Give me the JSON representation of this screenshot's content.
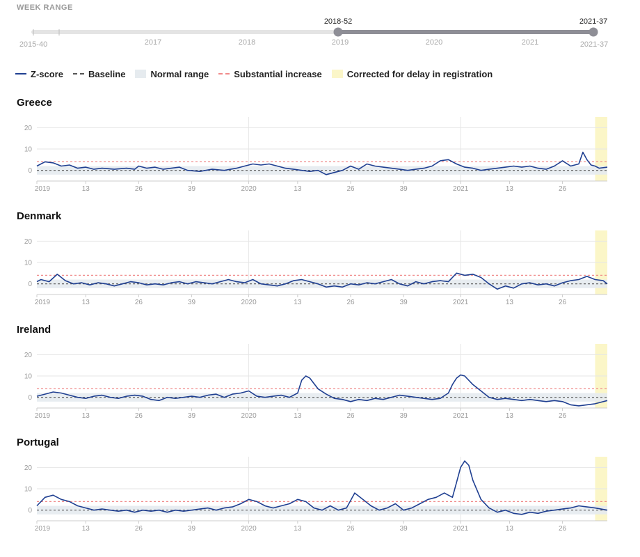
{
  "week_range": {
    "label": "WEEK RANGE",
    "min_label": "2015-40",
    "max_label": "2021-37",
    "year_ticks": [
      "2017",
      "2018",
      "2019",
      "2020",
      "2021"
    ],
    "selected_start": "2018-52",
    "selected_end": "2021-37",
    "colors": {
      "track": "#e4e4e4",
      "selected": "#8e8e96",
      "handle": "#8e8e96"
    }
  },
  "legend": [
    {
      "key": "z",
      "label": "Z-score"
    },
    {
      "key": "base",
      "label": "Baseline"
    },
    {
      "key": "normal",
      "label": "Normal range"
    },
    {
      "key": "sub",
      "label": "Substantial increase"
    },
    {
      "key": "corr",
      "label": "Corrected for delay in registration"
    }
  ],
  "colors": {
    "z_score": "#1f3f91",
    "baseline": "#555555",
    "normal_range": "#e6ebef",
    "substantial_increase": "#f08a8a",
    "corrected": "#fbf6c8",
    "grid": "#e6e6e6"
  },
  "chart_data": {
    "type": "line",
    "x_axis": {
      "tick_labels": [
        "2019",
        "13",
        "26",
        "39",
        "2020",
        "13",
        "26",
        "39",
        "2021",
        "13",
        "26"
      ],
      "tick_weeks": [
        1,
        13,
        26,
        39,
        53,
        65,
        78,
        91,
        105,
        117,
        130
      ],
      "range_weeks": [
        1,
        141
      ]
    },
    "y_axis": {
      "ticks": [
        0,
        10,
        20
      ]
    },
    "normal_range": [
      -2,
      2
    ],
    "baseline": 0,
    "substantial_increase": 4,
    "corrected_weeks": [
      138,
      141
    ],
    "panels": [
      {
        "country": "Greece",
        "ylim": [
          -5,
          25
        ],
        "points": [
          [
            1,
            2
          ],
          [
            3,
            4
          ],
          [
            5,
            3.5
          ],
          [
            7,
            2
          ],
          [
            9,
            2.5
          ],
          [
            11,
            1
          ],
          [
            13,
            1.5
          ],
          [
            15,
            0.5
          ],
          [
            17,
            1
          ],
          [
            20,
            0.5
          ],
          [
            23,
            1
          ],
          [
            25,
            0.5
          ],
          [
            26,
            2
          ],
          [
            28,
            1
          ],
          [
            30,
            1.5
          ],
          [
            32,
            0.5
          ],
          [
            34,
            1
          ],
          [
            36,
            1.5
          ],
          [
            38,
            0
          ],
          [
            41,
            -0.5
          ],
          [
            44,
            0.5
          ],
          [
            47,
            0
          ],
          [
            50,
            1
          ],
          [
            52,
            2
          ],
          [
            54,
            3
          ],
          [
            56,
            2.5
          ],
          [
            58,
            3
          ],
          [
            60,
            2
          ],
          [
            62,
            1
          ],
          [
            64,
            0.5
          ],
          [
            66,
            0
          ],
          [
            68,
            -0.5
          ],
          [
            70,
            0
          ],
          [
            72,
            -2
          ],
          [
            74,
            -1
          ],
          [
            76,
            0
          ],
          [
            78,
            2
          ],
          [
            80,
            0.5
          ],
          [
            82,
            3
          ],
          [
            84,
            2
          ],
          [
            86,
            1.5
          ],
          [
            88,
            1
          ],
          [
            90,
            0.5
          ],
          [
            92,
            0
          ],
          [
            94,
            0.5
          ],
          [
            96,
            1
          ],
          [
            98,
            2
          ],
          [
            100,
            4.5
          ],
          [
            102,
            5
          ],
          [
            104,
            3
          ],
          [
            106,
            1.5
          ],
          [
            108,
            1
          ],
          [
            110,
            0
          ],
          [
            112,
            0.5
          ],
          [
            114,
            1
          ],
          [
            116,
            1.5
          ],
          [
            118,
            2
          ],
          [
            120,
            1.5
          ],
          [
            122,
            2
          ],
          [
            124,
            1
          ],
          [
            126,
            0.5
          ],
          [
            128,
            2
          ],
          [
            130,
            4.5
          ],
          [
            132,
            2
          ],
          [
            134,
            3
          ],
          [
            135,
            8.5
          ],
          [
            136,
            5
          ],
          [
            137,
            2.5
          ],
          [
            138,
            2
          ],
          [
            139,
            1
          ],
          [
            141,
            1.5
          ]
        ]
      },
      {
        "country": "Denmark",
        "ylim": [
          -5,
          25
        ],
        "points": [
          [
            1,
            1
          ],
          [
            2,
            2
          ],
          [
            4,
            1
          ],
          [
            6,
            4.5
          ],
          [
            8,
            1.5
          ],
          [
            10,
            0
          ],
          [
            12,
            0.5
          ],
          [
            14,
            -0.5
          ],
          [
            16,
            0.5
          ],
          [
            18,
            0
          ],
          [
            20,
            -1
          ],
          [
            22,
            0
          ],
          [
            24,
            1
          ],
          [
            26,
            0.5
          ],
          [
            28,
            -0.5
          ],
          [
            30,
            0
          ],
          [
            32,
            -0.5
          ],
          [
            34,
            0.5
          ],
          [
            36,
            1
          ],
          [
            38,
            0
          ],
          [
            40,
            1
          ],
          [
            42,
            0.5
          ],
          [
            44,
            0
          ],
          [
            46,
            1
          ],
          [
            48,
            2
          ],
          [
            50,
            1
          ],
          [
            52,
            0.5
          ],
          [
            54,
            2
          ],
          [
            56,
            0
          ],
          [
            58,
            -0.5
          ],
          [
            60,
            -1
          ],
          [
            62,
            0
          ],
          [
            64,
            1.5
          ],
          [
            66,
            2
          ],
          [
            68,
            1
          ],
          [
            70,
            0
          ],
          [
            72,
            -1.5
          ],
          [
            74,
            -1
          ],
          [
            76,
            -1.5
          ],
          [
            78,
            0
          ],
          [
            80,
            -0.5
          ],
          [
            82,
            0.5
          ],
          [
            84,
            0
          ],
          [
            86,
            1
          ],
          [
            88,
            2
          ],
          [
            90,
            0
          ],
          [
            92,
            -1
          ],
          [
            94,
            1
          ],
          [
            96,
            0
          ],
          [
            98,
            1
          ],
          [
            100,
            1.5
          ],
          [
            102,
            1
          ],
          [
            104,
            5
          ],
          [
            106,
            4
          ],
          [
            108,
            4.5
          ],
          [
            110,
            3
          ],
          [
            112,
            0
          ],
          [
            114,
            -2.5
          ],
          [
            116,
            -1
          ],
          [
            118,
            -2
          ],
          [
            120,
            0
          ],
          [
            122,
            0.5
          ],
          [
            124,
            -0.5
          ],
          [
            126,
            0
          ],
          [
            128,
            -1
          ],
          [
            130,
            0.5
          ],
          [
            132,
            1.5
          ],
          [
            134,
            2
          ],
          [
            136,
            3.5
          ],
          [
            138,
            2
          ],
          [
            140,
            1.5
          ],
          [
            141,
            0
          ]
        ]
      },
      {
        "country": "Ireland",
        "ylim": [
          -5,
          25
        ],
        "points": [
          [
            1,
            0.5
          ],
          [
            3,
            1.5
          ],
          [
            5,
            2.5
          ],
          [
            7,
            2
          ],
          [
            9,
            1
          ],
          [
            11,
            0
          ],
          [
            13,
            -0.5
          ],
          [
            15,
            0.5
          ],
          [
            17,
            1
          ],
          [
            19,
            0
          ],
          [
            21,
            -0.5
          ],
          [
            23,
            0.5
          ],
          [
            25,
            1
          ],
          [
            27,
            0.5
          ],
          [
            29,
            -1
          ],
          [
            31,
            -1.5
          ],
          [
            33,
            0
          ],
          [
            35,
            -0.5
          ],
          [
            37,
            0
          ],
          [
            39,
            0.5
          ],
          [
            41,
            0
          ],
          [
            43,
            1
          ],
          [
            45,
            1.5
          ],
          [
            47,
            0
          ],
          [
            49,
            1.5
          ],
          [
            51,
            2
          ],
          [
            53,
            3
          ],
          [
            55,
            0.5
          ],
          [
            57,
            0
          ],
          [
            59,
            0.5
          ],
          [
            61,
            1
          ],
          [
            63,
            0
          ],
          [
            65,
            2
          ],
          [
            66,
            8
          ],
          [
            67,
            10
          ],
          [
            68,
            9
          ],
          [
            70,
            4
          ],
          [
            72,
            1.5
          ],
          [
            74,
            -0.5
          ],
          [
            76,
            -1
          ],
          [
            78,
            -2
          ],
          [
            80,
            -1
          ],
          [
            82,
            -1.5
          ],
          [
            84,
            -0.5
          ],
          [
            86,
            -1
          ],
          [
            88,
            0
          ],
          [
            90,
            1
          ],
          [
            92,
            0.5
          ],
          [
            94,
            0
          ],
          [
            96,
            -0.5
          ],
          [
            98,
            -1
          ],
          [
            100,
            -0.5
          ],
          [
            102,
            2
          ],
          [
            103,
            6
          ],
          [
            104,
            9
          ],
          [
            105,
            10.5
          ],
          [
            106,
            10
          ],
          [
            108,
            6
          ],
          [
            110,
            3
          ],
          [
            112,
            0
          ],
          [
            114,
            -1
          ],
          [
            116,
            -0.5
          ],
          [
            118,
            -1
          ],
          [
            120,
            -1.5
          ],
          [
            122,
            -1
          ],
          [
            124,
            -1.5
          ],
          [
            126,
            -2
          ],
          [
            128,
            -1.5
          ],
          [
            130,
            -2
          ],
          [
            132,
            -3.5
          ],
          [
            134,
            -4
          ],
          [
            136,
            -3.5
          ],
          [
            138,
            -3
          ],
          [
            141,
            -1.5
          ]
        ]
      },
      {
        "country": "Portugal",
        "ylim": [
          -5,
          25
        ],
        "points": [
          [
            1,
            2
          ],
          [
            3,
            6
          ],
          [
            5,
            7
          ],
          [
            7,
            5
          ],
          [
            9,
            4
          ],
          [
            11,
            2
          ],
          [
            13,
            1
          ],
          [
            15,
            0
          ],
          [
            17,
            0.5
          ],
          [
            19,
            0
          ],
          [
            21,
            -0.5
          ],
          [
            23,
            0
          ],
          [
            25,
            -1
          ],
          [
            27,
            0
          ],
          [
            29,
            -0.5
          ],
          [
            31,
            0
          ],
          [
            33,
            -1
          ],
          [
            35,
            0
          ],
          [
            37,
            -0.5
          ],
          [
            39,
            0
          ],
          [
            41,
            0.5
          ],
          [
            43,
            1
          ],
          [
            45,
            0
          ],
          [
            47,
            1
          ],
          [
            49,
            1.5
          ],
          [
            51,
            3
          ],
          [
            53,
            5
          ],
          [
            55,
            4
          ],
          [
            57,
            2
          ],
          [
            59,
            1
          ],
          [
            61,
            2
          ],
          [
            63,
            3
          ],
          [
            65,
            5
          ],
          [
            67,
            4
          ],
          [
            69,
            1
          ],
          [
            71,
            0
          ],
          [
            73,
            2
          ],
          [
            75,
            0
          ],
          [
            77,
            1
          ],
          [
            79,
            8
          ],
          [
            81,
            5
          ],
          [
            83,
            2
          ],
          [
            85,
            0
          ],
          [
            87,
            1
          ],
          [
            89,
            3
          ],
          [
            91,
            0
          ],
          [
            93,
            1
          ],
          [
            95,
            3
          ],
          [
            97,
            5
          ],
          [
            99,
            6
          ],
          [
            101,
            8
          ],
          [
            103,
            6
          ],
          [
            104,
            13
          ],
          [
            105,
            20
          ],
          [
            106,
            23
          ],
          [
            107,
            21
          ],
          [
            108,
            14
          ],
          [
            110,
            5
          ],
          [
            112,
            1
          ],
          [
            114,
            -1
          ],
          [
            116,
            0
          ],
          [
            118,
            -1.5
          ],
          [
            120,
            -2
          ],
          [
            122,
            -1
          ],
          [
            124,
            -1.5
          ],
          [
            126,
            -0.5
          ],
          [
            128,
            0
          ],
          [
            130,
            0.5
          ],
          [
            132,
            1
          ],
          [
            134,
            2
          ],
          [
            136,
            1.5
          ],
          [
            138,
            1
          ],
          [
            141,
            0
          ]
        ]
      }
    ]
  }
}
